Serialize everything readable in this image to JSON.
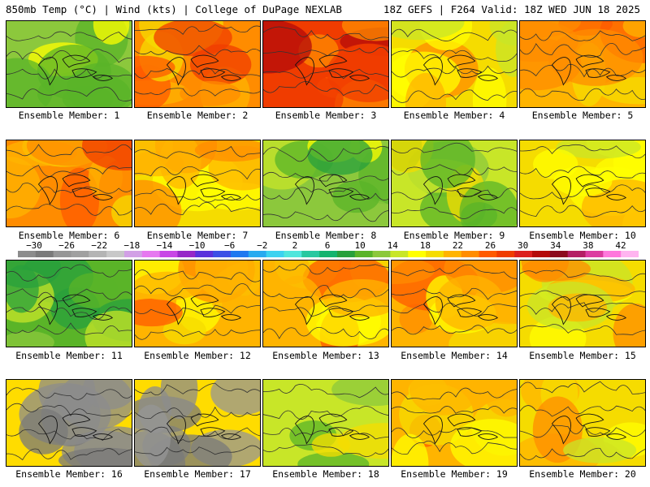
{
  "header": {
    "left": "850mb Temp (°C) | Wind (kts) | College of DuPage NEXLAB",
    "right": "18Z GEFS | F264 Valid: 18Z WED JUN 18 2025"
  },
  "colorbar": {
    "tick_labels": [
      "−30",
      "−26",
      "−22",
      "−18",
      "−14",
      "−10",
      "−6",
      "−2",
      "2",
      "6",
      "10",
      "14",
      "18",
      "22",
      "26",
      "30",
      "34",
      "38",
      "42"
    ],
    "colors": [
      "#8c8c8c",
      "#7a7a7a",
      "#969696",
      "#a0a0a0",
      "#b4b4b4",
      "#c8c8c8",
      "#d2a0e6",
      "#e678f0",
      "#c846e6",
      "#9628c8",
      "#5a32dc",
      "#3c50e6",
      "#1e78f0",
      "#28aaf0",
      "#3cd2f0",
      "#50e6dc",
      "#28c8a0",
      "#14b46e",
      "#28a03c",
      "#5ab428",
      "#8cc83c",
      "#c8e628",
      "#ffff00",
      "#f5dc00",
      "#ffb400",
      "#ff8c00",
      "#ff5a00",
      "#f03c00",
      "#dc1e1e",
      "#b40a0a",
      "#8c0a1e",
      "#b41e64",
      "#dc3ca0",
      "#ff78dc",
      "#ffb4f0"
    ]
  },
  "panels": [
    {
      "label": "Ensemble Member: 1",
      "tint": "#8cc83c"
    },
    {
      "label": "Ensemble Member: 2",
      "tint": "#ff8c00"
    },
    {
      "label": "Ensemble Member: 3",
      "tint": "#f03c00"
    },
    {
      "label": "Ensemble Member: 4",
      "tint": "#f5dc00"
    },
    {
      "label": "Ensemble Member: 5",
      "tint": "#ffb400"
    },
    {
      "label": "Ensemble Member: 6",
      "tint": "#ff8c00"
    },
    {
      "label": "Ensemble Member: 7",
      "tint": "#f5dc00"
    },
    {
      "label": "Ensemble Member: 8",
      "tint": "#8cc83c"
    },
    {
      "label": "Ensemble Member: 9",
      "tint": "#c8e628"
    },
    {
      "label": "Ensemble Member: 10",
      "tint": "#f5dc00"
    },
    {
      "label": "Ensemble Member: 11",
      "tint": "#5ab428"
    },
    {
      "label": "Ensemble Member: 12",
      "tint": "#ffb400"
    },
    {
      "label": "Ensemble Member: 13",
      "tint": "#ffb400"
    },
    {
      "label": "Ensemble Member: 14",
      "tint": "#ffb400"
    },
    {
      "label": "Ensemble Member: 15",
      "tint": "#f5dc00"
    },
    {
      "label": "Ensemble Member: 16",
      "tint": "#ffdc00"
    },
    {
      "label": "Ensemble Member: 17",
      "tint": "#ffdc00"
    },
    {
      "label": "Ensemble Member: 18",
      "tint": "#c8e628"
    },
    {
      "label": "Ensemble Member: 19",
      "tint": "#ffb400"
    },
    {
      "label": "Ensemble Member: 20",
      "tint": "#f5dc00"
    }
  ]
}
